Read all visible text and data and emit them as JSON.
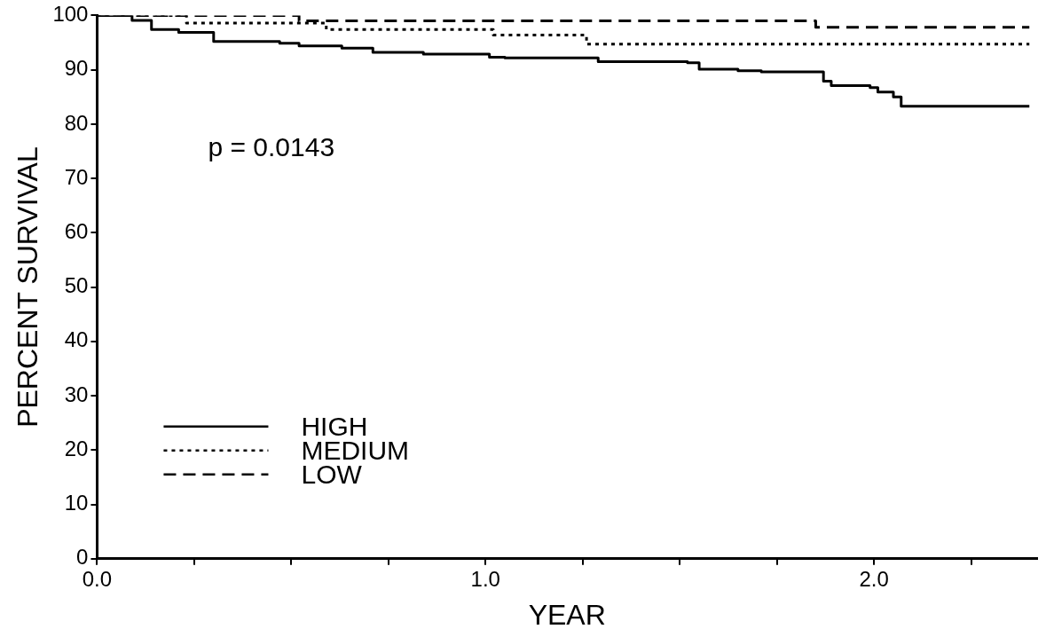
{
  "chart_data": {
    "type": "step",
    "xlabel": "YEAR",
    "ylabel": "PERCENT SURVIVAL",
    "xlim": [
      0,
      2.42
    ],
    "xticks": [
      {
        "value": 0,
        "label": "0.0"
      },
      {
        "value": 0.25,
        "label": null
      },
      {
        "value": 0.5,
        "label": null
      },
      {
        "value": 0.75,
        "label": null
      },
      {
        "value": 1,
        "label": "1.0"
      },
      {
        "value": 1.25,
        "label": null
      },
      {
        "value": 1.5,
        "label": null
      },
      {
        "value": 1.75,
        "label": null
      },
      {
        "value": 2,
        "label": "2.0"
      },
      {
        "value": 2.25,
        "label": null
      }
    ],
    "ylim": [
      0,
      100
    ],
    "yticks": [
      0,
      10,
      20,
      30,
      40,
      50,
      60,
      70,
      80,
      90,
      100
    ],
    "grid": false,
    "legend": "bottom left",
    "marker": "none",
    "annotations": [
      "p = 0.0143"
    ],
    "series": [
      {
        "name": "HIGH",
        "color": "#000000",
        "line_style": "solid",
        "x": [
          0,
          0.09,
          0.14,
          0.21,
          0.3,
          0.47,
          0.52,
          0.63,
          0.71,
          0.84,
          1.01,
          1.05,
          1.29,
          1.52,
          1.55,
          1.65,
          1.71,
          1.87,
          1.89,
          1.99,
          2.01,
          2.05,
          2.07,
          2.4
        ],
        "values": [
          100,
          99.1,
          97.4,
          96.9,
          95.2,
          94.9,
          94.4,
          94,
          93.2,
          92.9,
          92.3,
          92.2,
          91.5,
          91.3,
          90.1,
          89.8,
          89.6,
          87.9,
          87.1,
          86.7,
          85.9,
          85,
          83.3,
          83.3
        ]
      },
      {
        "name": "MEDIUM",
        "color": "#000000",
        "line_style": "dotted",
        "x": [
          0,
          0.23,
          0.59,
          1.02,
          1.26,
          2.4
        ],
        "values": [
          100,
          98.6,
          97.4,
          96.4,
          94.7,
          94.7
        ]
      },
      {
        "name": "LOW",
        "color": "#000000",
        "line_style": "dashed",
        "x": [
          0,
          0.52,
          1.85,
          2.4
        ],
        "values": [
          100,
          99,
          97.8,
          97.8
        ]
      }
    ]
  }
}
